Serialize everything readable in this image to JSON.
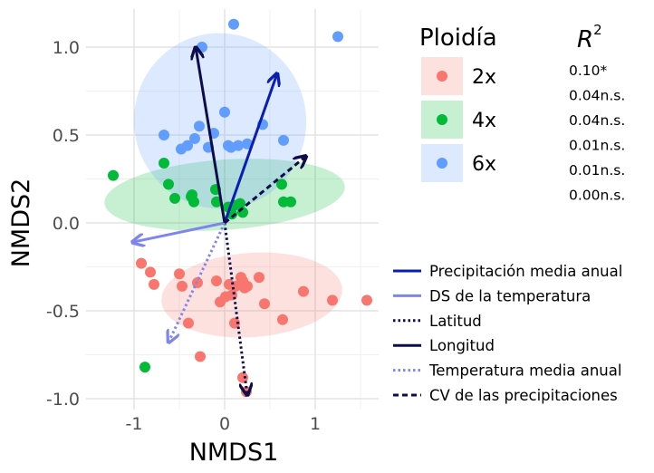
{
  "chart_data": {
    "type": "scatter",
    "xlabel": "NMDS1",
    "ylabel": "NMDS2",
    "xlim": [
      -1.35,
      1.7
    ],
    "ylim": [
      -1.07,
      1.2
    ],
    "x_ticks": [
      -1,
      0,
      1
    ],
    "x_tick_labels": [
      "-1",
      "0",
      "1"
    ],
    "y_ticks": [
      -1.0,
      -0.5,
      0.0,
      0.5,
      1.0
    ],
    "y_tick_labels": [
      "-1.0",
      "-0.5",
      "0.0",
      "0.5",
      "1.0"
    ],
    "grid": true,
    "colors": {
      "2x": "#F8766D",
      "4x": "#00BA38",
      "6x": "#619CFF"
    },
    "legend": {
      "title": "Ploidía",
      "entries": [
        "2x",
        "4x",
        "6x"
      ],
      "position": "right"
    },
    "r2": {
      "title": "R",
      "title_sup": "2",
      "values": [
        "0.10*",
        "0.04n.s.",
        "0.04n.s.",
        "0.01n.s.",
        "0.01n.s.",
        "0.00n.s."
      ]
    },
    "series": [
      {
        "name": "2x",
        "ellipse": {
          "cx": 0.3,
          "cy": -0.41,
          "rx": 1.0,
          "ry": 0.24,
          "angle_deg": -4
        },
        "x": [
          -0.92,
          -0.82,
          -0.78,
          -0.5,
          -0.47,
          -0.4,
          -0.3,
          -0.09,
          0.05,
          0.12,
          0.2,
          0.22,
          0.25,
          0.18,
          0.08,
          0.01,
          0.38,
          0.44,
          0.64,
          0.87,
          1.19,
          1.57,
          -0.05,
          0.11,
          -0.27,
          0.2,
          0.24
        ],
        "y": [
          -0.23,
          -0.28,
          -0.35,
          -0.29,
          -0.36,
          -0.57,
          -0.34,
          -0.33,
          -0.35,
          -0.36,
          -0.33,
          -0.37,
          -0.36,
          -0.31,
          -0.41,
          -0.42,
          -0.31,
          -0.46,
          -0.55,
          -0.39,
          -0.44,
          -0.44,
          -0.45,
          -0.57,
          -0.76,
          -0.88,
          -0.96
        ]
      },
      {
        "name": "4x",
        "ellipse": {
          "cx": 0.0,
          "cy": 0.16,
          "rx": 1.33,
          "ry": 0.2,
          "angle_deg": -4
        },
        "x": [
          -1.23,
          -0.67,
          -0.62,
          -0.55,
          -0.37,
          -0.34,
          -0.36,
          -0.1,
          -0.09,
          0.04,
          0.11,
          0.17,
          0.2,
          0.08,
          0.63,
          0.65,
          0.73,
          -0.88
        ],
        "y": [
          0.27,
          0.34,
          0.22,
          0.14,
          0.15,
          0.12,
          0.16,
          0.19,
          0.12,
          0.09,
          0.1,
          0.11,
          0.06,
          0.05,
          0.22,
          0.12,
          0.12,
          -0.82
        ]
      },
      {
        "name": "6x",
        "ellipse": {
          "cx": -0.05,
          "cy": 0.58,
          "rx": 0.95,
          "ry": 0.5,
          "angle_deg": -12
        },
        "x": [
          -0.25,
          0.1,
          1.25,
          -0.28,
          -0.12,
          0.0,
          -0.41,
          -0.67,
          -0.48,
          -0.33,
          -0.18,
          0.04,
          0.07,
          0.15,
          0.25,
          0.42,
          0.65
        ],
        "y": [
          1.0,
          1.13,
          1.06,
          0.55,
          0.51,
          0.63,
          0.44,
          0.5,
          0.42,
          0.48,
          0.43,
          0.44,
          0.43,
          0.44,
          0.45,
          0.56,
          0.47
        ]
      }
    ],
    "vectors": [
      {
        "name": "Precipitación media anual",
        "x": 0.58,
        "y": 0.85,
        "color": "#0A1EB4",
        "dash": "solid"
      },
      {
        "name": "DS de la temperatura",
        "x": -1.02,
        "y": -0.11,
        "color": "#7F85EC",
        "dash": "solid"
      },
      {
        "name": "Latitud",
        "x": 0.25,
        "y": -0.98,
        "color": "#0D0D4D",
        "dash": "dotted"
      },
      {
        "name": "Longitud",
        "x": -0.32,
        "y": 1.0,
        "color": "#0D0D4D",
        "dash": "solid"
      },
      {
        "name": "Temperatura media anual",
        "x": -0.62,
        "y": -0.68,
        "color": "#7F85EC",
        "dash": "dotted"
      },
      {
        "name": "CV de las precipitaciones",
        "x": 0.9,
        "y": 0.38,
        "color": "#0D0D4D",
        "dash": "dashed"
      }
    ]
  }
}
